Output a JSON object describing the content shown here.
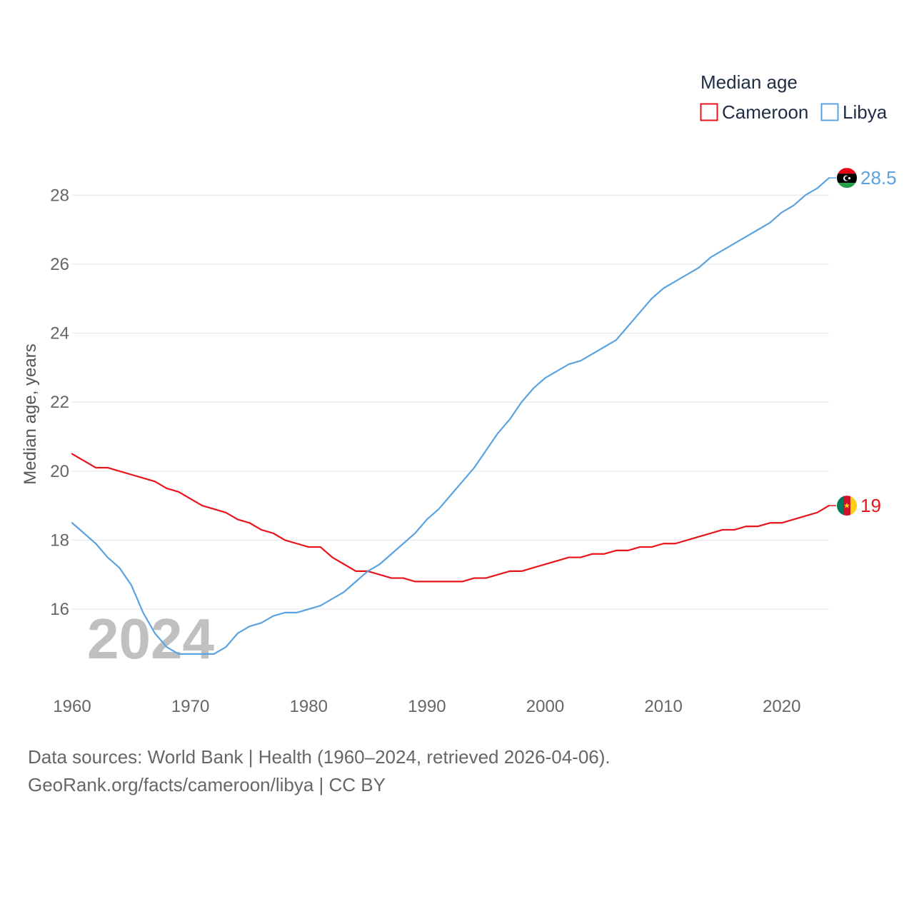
{
  "chart_data": {
    "type": "line",
    "legend_title": "Median age",
    "ylabel": "Median age, years",
    "xlabel": "",
    "year_watermark": "2024",
    "xlim": [
      1960,
      2024
    ],
    "ylim": [
      14.2,
      29
    ],
    "x_ticks": [
      1960,
      1970,
      1980,
      1990,
      2000,
      2010,
      2020
    ],
    "y_ticks": [
      16,
      18,
      20,
      22,
      24,
      26,
      28
    ],
    "x": [
      1960,
      1961,
      1962,
      1963,
      1964,
      1965,
      1966,
      1967,
      1968,
      1969,
      1970,
      1971,
      1972,
      1973,
      1974,
      1975,
      1976,
      1977,
      1978,
      1979,
      1980,
      1981,
      1982,
      1983,
      1984,
      1985,
      1986,
      1987,
      1988,
      1989,
      1990,
      1991,
      1992,
      1993,
      1994,
      1995,
      1996,
      1997,
      1998,
      1999,
      2000,
      2001,
      2002,
      2003,
      2004,
      2005,
      2006,
      2007,
      2008,
      2009,
      2010,
      2011,
      2012,
      2013,
      2014,
      2015,
      2016,
      2017,
      2018,
      2019,
      2020,
      2021,
      2022,
      2023,
      2024
    ],
    "series": [
      {
        "name": "Cameroon",
        "color": "#e8141c",
        "end_label": "19",
        "values": [
          20.5,
          20.3,
          20.1,
          20.1,
          20.0,
          19.9,
          19.8,
          19.7,
          19.5,
          19.4,
          19.2,
          19.0,
          18.9,
          18.8,
          18.6,
          18.5,
          18.3,
          18.2,
          18.0,
          17.9,
          17.8,
          17.8,
          17.5,
          17.3,
          17.1,
          17.1,
          17.0,
          16.9,
          16.9,
          16.8,
          16.8,
          16.8,
          16.8,
          16.8,
          16.9,
          16.9,
          17.0,
          17.1,
          17.1,
          17.2,
          17.3,
          17.4,
          17.5,
          17.5,
          17.6,
          17.6,
          17.7,
          17.7,
          17.8,
          17.8,
          17.9,
          17.9,
          18.0,
          18.1,
          18.2,
          18.3,
          18.3,
          18.4,
          18.4,
          18.5,
          18.5,
          18.6,
          18.7,
          18.8,
          19.0
        ]
      },
      {
        "name": "Libya",
        "color": "#5ba3e0",
        "end_label": "28.5",
        "values": [
          18.5,
          18.2,
          17.9,
          17.5,
          17.2,
          16.7,
          15.9,
          15.3,
          14.9,
          14.7,
          14.7,
          14.7,
          14.7,
          14.9,
          15.3,
          15.5,
          15.6,
          15.8,
          15.9,
          15.9,
          16.0,
          16.1,
          16.3,
          16.5,
          16.8,
          17.1,
          17.3,
          17.6,
          17.9,
          18.2,
          18.6,
          18.9,
          19.3,
          19.7,
          20.1,
          20.6,
          21.1,
          21.5,
          22.0,
          22.4,
          22.7,
          22.9,
          23.1,
          23.2,
          23.4,
          23.6,
          23.8,
          24.2,
          24.6,
          25.0,
          25.3,
          25.5,
          25.7,
          25.9,
          26.2,
          26.4,
          26.6,
          26.8,
          27.0,
          27.2,
          27.5,
          27.7,
          28.0,
          28.2,
          28.5
        ]
      }
    ]
  },
  "source": {
    "line1": "Data sources: World Bank | Health (1960–2024, retrieved 2026-04-06).",
    "line2": "GeoRank.org/facts/cameroon/libya | CC BY"
  }
}
